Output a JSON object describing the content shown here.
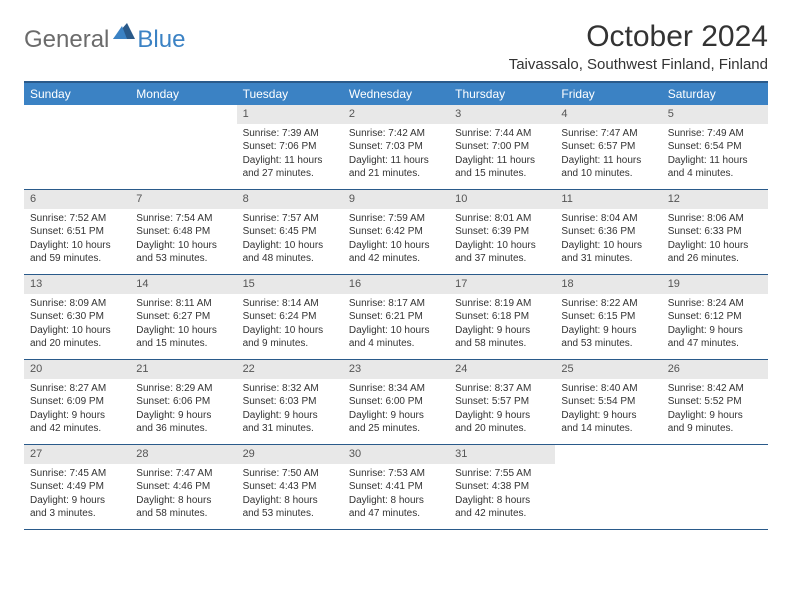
{
  "logo": {
    "general": "General",
    "blue": "Blue"
  },
  "title": "October 2024",
  "location": "Taivassalo, Southwest Finland, Finland",
  "colors": {
    "header_bg": "#3b82c4",
    "border": "#2a5a8a",
    "daynum_bg": "#e8e8e8",
    "text": "#333333",
    "logo_gray": "#6b6b6b"
  },
  "day_names": [
    "Sunday",
    "Monday",
    "Tuesday",
    "Wednesday",
    "Thursday",
    "Friday",
    "Saturday"
  ],
  "weeks": [
    [
      null,
      null,
      {
        "n": "1",
        "sr": "Sunrise: 7:39 AM",
        "ss": "Sunset: 7:06 PM",
        "dl": "Daylight: 11 hours and 27 minutes."
      },
      {
        "n": "2",
        "sr": "Sunrise: 7:42 AM",
        "ss": "Sunset: 7:03 PM",
        "dl": "Daylight: 11 hours and 21 minutes."
      },
      {
        "n": "3",
        "sr": "Sunrise: 7:44 AM",
        "ss": "Sunset: 7:00 PM",
        "dl": "Daylight: 11 hours and 15 minutes."
      },
      {
        "n": "4",
        "sr": "Sunrise: 7:47 AM",
        "ss": "Sunset: 6:57 PM",
        "dl": "Daylight: 11 hours and 10 minutes."
      },
      {
        "n": "5",
        "sr": "Sunrise: 7:49 AM",
        "ss": "Sunset: 6:54 PM",
        "dl": "Daylight: 11 hours and 4 minutes."
      }
    ],
    [
      {
        "n": "6",
        "sr": "Sunrise: 7:52 AM",
        "ss": "Sunset: 6:51 PM",
        "dl": "Daylight: 10 hours and 59 minutes."
      },
      {
        "n": "7",
        "sr": "Sunrise: 7:54 AM",
        "ss": "Sunset: 6:48 PM",
        "dl": "Daylight: 10 hours and 53 minutes."
      },
      {
        "n": "8",
        "sr": "Sunrise: 7:57 AM",
        "ss": "Sunset: 6:45 PM",
        "dl": "Daylight: 10 hours and 48 minutes."
      },
      {
        "n": "9",
        "sr": "Sunrise: 7:59 AM",
        "ss": "Sunset: 6:42 PM",
        "dl": "Daylight: 10 hours and 42 minutes."
      },
      {
        "n": "10",
        "sr": "Sunrise: 8:01 AM",
        "ss": "Sunset: 6:39 PM",
        "dl": "Daylight: 10 hours and 37 minutes."
      },
      {
        "n": "11",
        "sr": "Sunrise: 8:04 AM",
        "ss": "Sunset: 6:36 PM",
        "dl": "Daylight: 10 hours and 31 minutes."
      },
      {
        "n": "12",
        "sr": "Sunrise: 8:06 AM",
        "ss": "Sunset: 6:33 PM",
        "dl": "Daylight: 10 hours and 26 minutes."
      }
    ],
    [
      {
        "n": "13",
        "sr": "Sunrise: 8:09 AM",
        "ss": "Sunset: 6:30 PM",
        "dl": "Daylight: 10 hours and 20 minutes."
      },
      {
        "n": "14",
        "sr": "Sunrise: 8:11 AM",
        "ss": "Sunset: 6:27 PM",
        "dl": "Daylight: 10 hours and 15 minutes."
      },
      {
        "n": "15",
        "sr": "Sunrise: 8:14 AM",
        "ss": "Sunset: 6:24 PM",
        "dl": "Daylight: 10 hours and 9 minutes."
      },
      {
        "n": "16",
        "sr": "Sunrise: 8:17 AM",
        "ss": "Sunset: 6:21 PM",
        "dl": "Daylight: 10 hours and 4 minutes."
      },
      {
        "n": "17",
        "sr": "Sunrise: 8:19 AM",
        "ss": "Sunset: 6:18 PM",
        "dl": "Daylight: 9 hours and 58 minutes."
      },
      {
        "n": "18",
        "sr": "Sunrise: 8:22 AM",
        "ss": "Sunset: 6:15 PM",
        "dl": "Daylight: 9 hours and 53 minutes."
      },
      {
        "n": "19",
        "sr": "Sunrise: 8:24 AM",
        "ss": "Sunset: 6:12 PM",
        "dl": "Daylight: 9 hours and 47 minutes."
      }
    ],
    [
      {
        "n": "20",
        "sr": "Sunrise: 8:27 AM",
        "ss": "Sunset: 6:09 PM",
        "dl": "Daylight: 9 hours and 42 minutes."
      },
      {
        "n": "21",
        "sr": "Sunrise: 8:29 AM",
        "ss": "Sunset: 6:06 PM",
        "dl": "Daylight: 9 hours and 36 minutes."
      },
      {
        "n": "22",
        "sr": "Sunrise: 8:32 AM",
        "ss": "Sunset: 6:03 PM",
        "dl": "Daylight: 9 hours and 31 minutes."
      },
      {
        "n": "23",
        "sr": "Sunrise: 8:34 AM",
        "ss": "Sunset: 6:00 PM",
        "dl": "Daylight: 9 hours and 25 minutes."
      },
      {
        "n": "24",
        "sr": "Sunrise: 8:37 AM",
        "ss": "Sunset: 5:57 PM",
        "dl": "Daylight: 9 hours and 20 minutes."
      },
      {
        "n": "25",
        "sr": "Sunrise: 8:40 AM",
        "ss": "Sunset: 5:54 PM",
        "dl": "Daylight: 9 hours and 14 minutes."
      },
      {
        "n": "26",
        "sr": "Sunrise: 8:42 AM",
        "ss": "Sunset: 5:52 PM",
        "dl": "Daylight: 9 hours and 9 minutes."
      }
    ],
    [
      {
        "n": "27",
        "sr": "Sunrise: 7:45 AM",
        "ss": "Sunset: 4:49 PM",
        "dl": "Daylight: 9 hours and 3 minutes."
      },
      {
        "n": "28",
        "sr": "Sunrise: 7:47 AM",
        "ss": "Sunset: 4:46 PM",
        "dl": "Daylight: 8 hours and 58 minutes."
      },
      {
        "n": "29",
        "sr": "Sunrise: 7:50 AM",
        "ss": "Sunset: 4:43 PM",
        "dl": "Daylight: 8 hours and 53 minutes."
      },
      {
        "n": "30",
        "sr": "Sunrise: 7:53 AM",
        "ss": "Sunset: 4:41 PM",
        "dl": "Daylight: 8 hours and 47 minutes."
      },
      {
        "n": "31",
        "sr": "Sunrise: 7:55 AM",
        "ss": "Sunset: 4:38 PM",
        "dl": "Daylight: 8 hours and 42 minutes."
      },
      null,
      null
    ]
  ]
}
